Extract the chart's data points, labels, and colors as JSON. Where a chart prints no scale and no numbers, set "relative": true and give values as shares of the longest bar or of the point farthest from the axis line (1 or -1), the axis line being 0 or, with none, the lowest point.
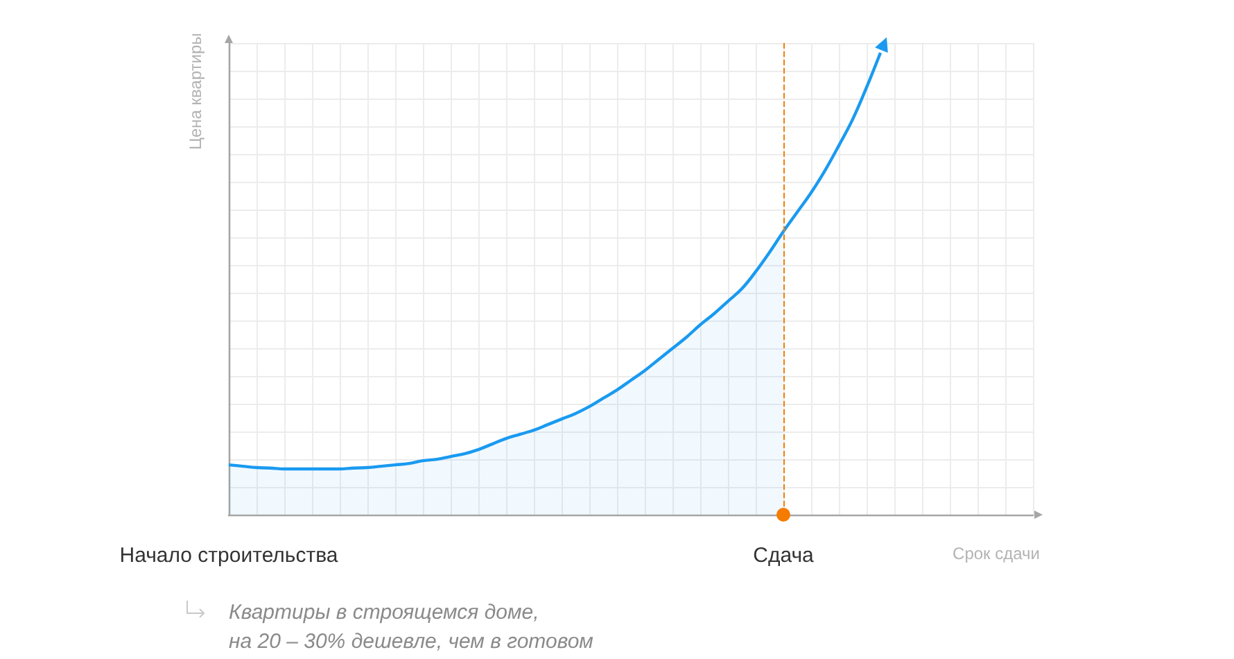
{
  "chart_data": {
    "type": "area",
    "relative": true,
    "grid": true,
    "xlabel": "Срок сдачи",
    "ylabel": "Цена квартиры",
    "categories": [
      "Начало строительства",
      null,
      null,
      null,
      null,
      null,
      null,
      null,
      null,
      null,
      null,
      null,
      null,
      null,
      null,
      null,
      null,
      null,
      null,
      null,
      null,
      null,
      null,
      null,
      null,
      null,
      null,
      null,
      null,
      null,
      null,
      null,
      null,
      null,
      null,
      null,
      null,
      null,
      null,
      null,
      "Сдача",
      null,
      null,
      null,
      null,
      null,
      null,
      null,
      null,
      null,
      null,
      null,
      null,
      null,
      null,
      null,
      null,
      null,
      null
    ],
    "series": [
      {
        "color": "#1a9af0",
        "values": [
          0.108,
          0.105,
          0.102,
          0.101,
          0.099,
          0.099,
          0.099,
          0.099,
          0.099,
          0.101,
          0.102,
          0.105,
          0.108,
          0.111,
          0.117,
          0.12,
          0.126,
          0.132,
          0.141,
          0.153,
          0.165,
          0.174,
          0.183,
          0.195,
          0.207,
          0.219,
          0.234,
          0.252,
          0.27,
          0.291,
          0.312,
          0.336,
          0.36,
          0.384,
          0.411,
          0.435,
          0.462,
          0.489,
          0.526,
          0.568,
          0.613,
          0.655,
          0.697,
          0.745,
          0.799,
          0.856,
          0.925,
          1,
          null,
          null,
          null,
          null,
          null,
          null,
          null,
          null,
          null,
          null,
          null
        ]
      }
    ],
    "ref_lines": [
      {
        "axis": "x",
        "value": "Сдача",
        "color": "#f57c00",
        "line_style": "dashed"
      }
    ],
    "annotations": [
      "Квартиры в строящемся доме,\nна 20 – 30% дешевле, чем в готовом"
    ]
  }
}
